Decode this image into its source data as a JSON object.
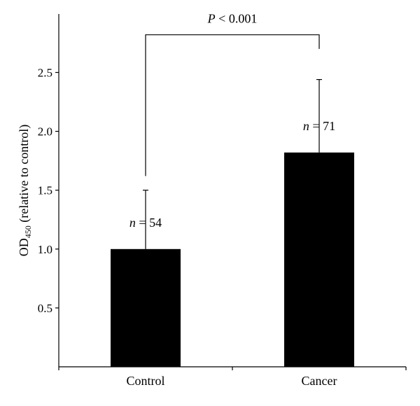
{
  "chart_data": {
    "type": "bar",
    "categories": [
      "Control",
      "Cancer"
    ],
    "values": [
      1.0,
      1.82
    ],
    "error_upper": [
      1.5,
      2.44
    ],
    "ylim": [
      0,
      3.0
    ],
    "yticks": [
      0.5,
      1.0,
      1.5,
      2.0,
      2.5
    ],
    "ytick_labels": [
      "0.5",
      "1.0",
      "1.5",
      "2.0",
      "2.5"
    ],
    "ylabel": "OD",
    "ylabel_sub": "450",
    "ylabel_rest": " (relative to control)",
    "xlabel": "",
    "n_labels": [
      {
        "var": "n",
        "eq": " = 54"
      },
      {
        "var": "n",
        "eq": " = 71"
      }
    ],
    "significance": {
      "var": "P",
      "text": " < 0.001",
      "bracket_level": 2.82
    },
    "bar_color": "#000000",
    "grid": false,
    "legend": "none"
  }
}
